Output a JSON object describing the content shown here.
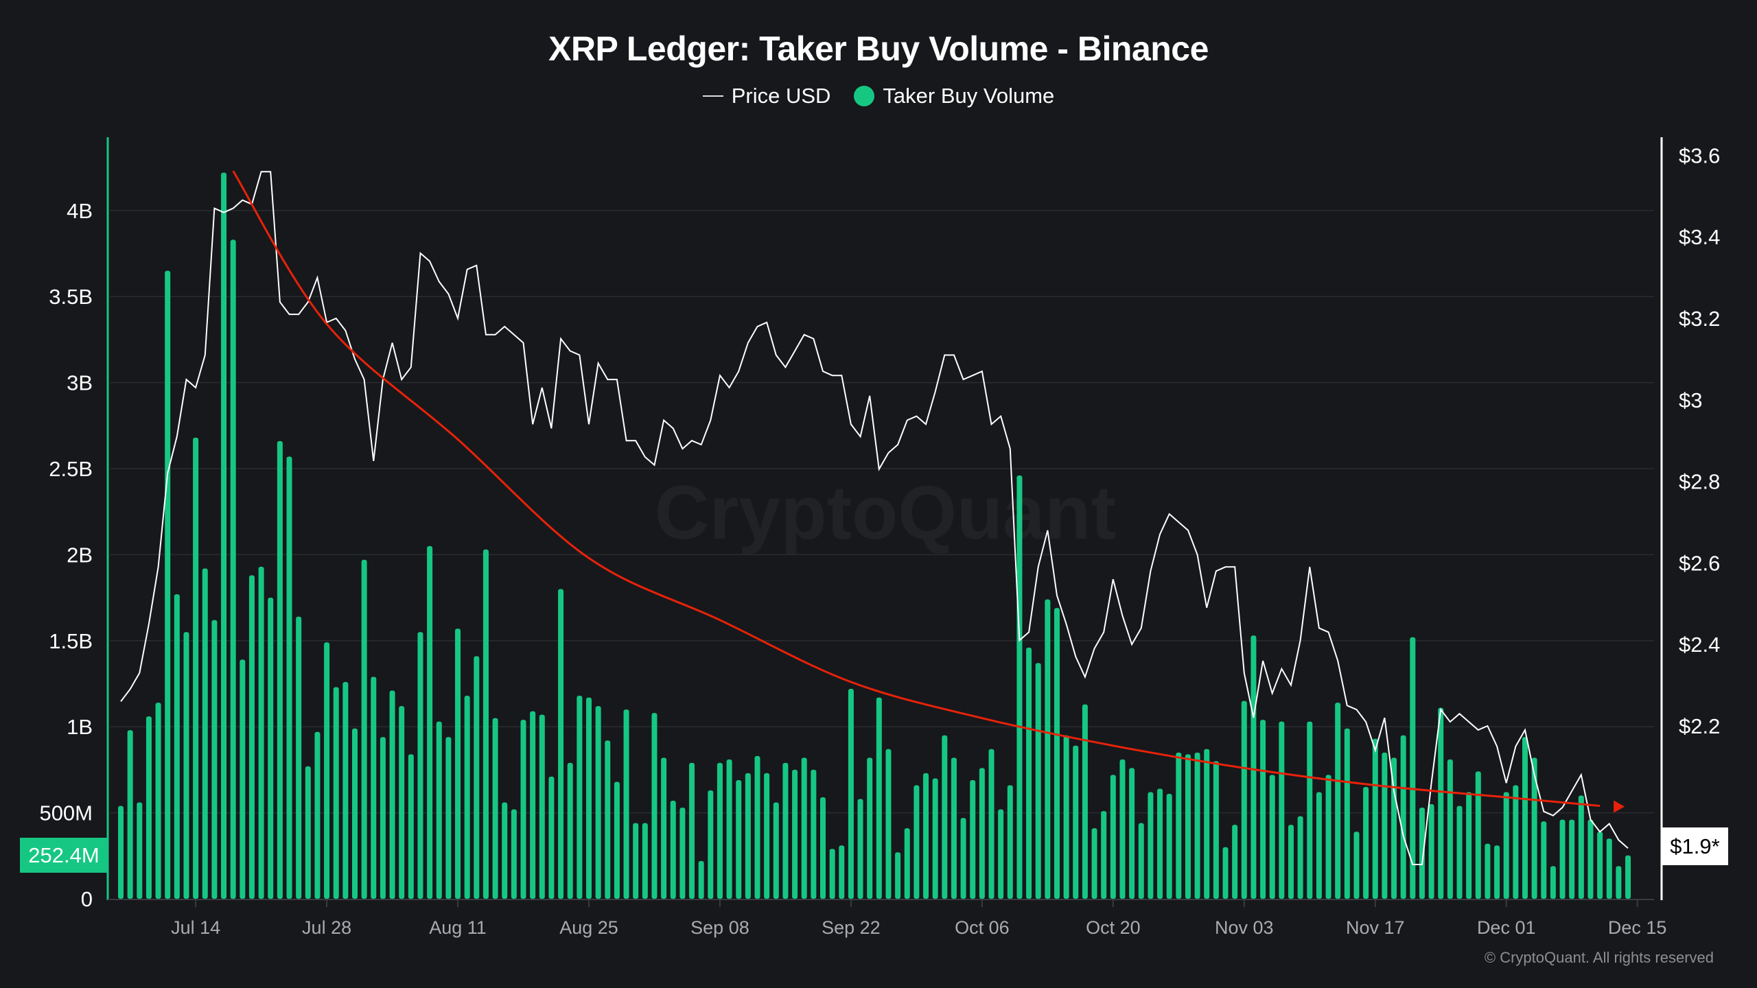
{
  "title": "XRP Ledger: Taker Buy Volume - Binance",
  "legend": {
    "price": "Price USD",
    "volume": "Taker Buy Volume"
  },
  "watermark": "CryptoQuant",
  "copyright": "© CryptoQuant. All rights reserved",
  "colors": {
    "background": "#17181b",
    "volume": "#16c784",
    "price": "#ffffff",
    "trend": "#e8220a",
    "grid": "#2a2b30"
  },
  "highlight": {
    "volume_label": "252.4M",
    "price_label": "$1.9*"
  },
  "chart_data": {
    "type": "bar+line",
    "title": "XRP Ledger: Taker Buy Volume - Binance",
    "x": {
      "start": "Jul 06",
      "end": "Dec 14",
      "interval": "1 day"
    },
    "x_ticks": [
      "Jul 14",
      "Jul 28",
      "Aug 11",
      "Aug 25",
      "Sep 08",
      "Sep 22",
      "Oct 06",
      "Oct 20",
      "Nov 03",
      "Nov 17",
      "Dec 01",
      "Dec 15"
    ],
    "left_axis": {
      "ylim": [
        0,
        4.4
      ],
      "unit": "B",
      "ticks": [
        "0",
        "500M",
        "1B",
        "1.5B",
        "2B",
        "2.5B",
        "3B",
        "3.5B",
        "4B"
      ],
      "tick_values": [
        0,
        0.5,
        1,
        1.5,
        2,
        2.5,
        3,
        3.5,
        4
      ]
    },
    "right_axis": {
      "ylim": [
        1.776,
        3.64
      ],
      "ticks": [
        "$3.6",
        "$3.4",
        "$3.2",
        "$3",
        "$2.8",
        "$2.6",
        "$2.4",
        "$2.2"
      ],
      "tick_values": [
        3.6,
        3.4,
        3.2,
        3.0,
        2.8,
        2.6,
        2.4,
        2.2
      ]
    },
    "grid": true,
    "legend_position": "top-center",
    "series": [
      {
        "name": "Taker Buy Volume",
        "type": "bar",
        "axis": "left",
        "unit": "billions",
        "values": [
          0.54,
          0.98,
          0.56,
          1.06,
          1.14,
          3.65,
          1.77,
          1.55,
          2.68,
          1.92,
          1.62,
          4.22,
          3.83,
          1.39,
          1.88,
          1.93,
          1.75,
          2.66,
          2.57,
          1.64,
          0.77,
          0.97,
          1.49,
          1.23,
          1.26,
          0.99,
          1.97,
          1.29,
          0.94,
          1.21,
          1.12,
          0.84,
          1.55,
          2.05,
          1.03,
          0.94,
          1.57,
          1.18,
          1.41,
          2.03,
          1.05,
          0.56,
          0.52,
          1.04,
          1.09,
          1.07,
          0.71,
          1.8,
          0.79,
          1.18,
          1.17,
          1.12,
          0.92,
          0.68,
          1.1,
          0.44,
          0.44,
          1.08,
          0.82,
          0.57,
          0.53,
          0.79,
          0.22,
          0.63,
          0.79,
          0.81,
          0.69,
          0.73,
          0.83,
          0.73,
          0.56,
          0.79,
          0.75,
          0.82,
          0.75,
          0.59,
          0.29,
          0.31,
          1.22,
          0.58,
          0.82,
          1.17,
          0.87,
          0.27,
          0.41,
          0.66,
          0.73,
          0.7,
          0.95,
          0.82,
          0.47,
          0.69,
          0.76,
          0.87,
          0.52,
          0.66,
          2.46,
          1.46,
          1.37,
          1.74,
          1.69,
          0.95,
          0.89,
          1.13,
          0.41,
          0.51,
          0.72,
          0.81,
          0.76,
          0.44,
          0.62,
          0.64,
          0.61,
          0.85,
          0.84,
          0.85,
          0.87,
          0.8,
          0.3,
          0.43,
          1.15,
          1.53,
          1.04,
          0.72,
          1.03,
          0.43,
          0.48,
          1.03,
          0.62,
          0.72,
          1.14,
          0.99,
          0.39,
          0.65,
          0.93,
          0.85,
          0.82,
          0.95,
          1.52,
          0.53,
          0.55,
          1.11,
          0.81,
          0.54,
          0.62,
          0.74,
          0.32,
          0.31,
          0.62,
          0.66,
          0.94,
          0.82,
          0.45,
          0.19,
          0.46,
          0.46,
          0.6,
          0.46,
          0.39,
          0.35,
          0.19,
          0.2524
        ]
      },
      {
        "name": "Price USD",
        "type": "line",
        "axis": "right",
        "unit": "USD",
        "values": [
          2.26,
          2.29,
          2.33,
          2.45,
          2.59,
          2.82,
          2.91,
          3.05,
          3.03,
          3.11,
          3.47,
          3.46,
          3.47,
          3.49,
          3.48,
          3.56,
          3.56,
          3.24,
          3.21,
          3.21,
          3.24,
          3.3,
          3.19,
          3.2,
          3.17,
          3.1,
          3.05,
          2.85,
          3.05,
          3.14,
          3.05,
          3.08,
          3.36,
          3.34,
          3.29,
          3.26,
          3.2,
          3.32,
          3.33,
          3.16,
          3.16,
          3.18,
          3.16,
          3.14,
          2.94,
          3.03,
          2.93,
          3.15,
          3.12,
          3.11,
          2.94,
          3.09,
          3.05,
          3.05,
          2.9,
          2.9,
          2.86,
          2.84,
          2.95,
          2.93,
          2.88,
          2.9,
          2.89,
          2.95,
          3.06,
          3.03,
          3.07,
          3.14,
          3.18,
          3.19,
          3.11,
          3.08,
          3.12,
          3.16,
          3.15,
          3.07,
          3.06,
          3.06,
          2.94,
          2.91,
          3.01,
          2.83,
          2.87,
          2.89,
          2.95,
          2.96,
          2.94,
          3.02,
          3.11,
          3.11,
          3.05,
          3.06,
          3.07,
          2.94,
          2.96,
          2.88,
          2.41,
          2.43,
          2.59,
          2.68,
          2.52,
          2.45,
          2.37,
          2.32,
          2.39,
          2.43,
          2.56,
          2.47,
          2.4,
          2.44,
          2.58,
          2.67,
          2.72,
          2.7,
          2.68,
          2.62,
          2.49,
          2.58,
          2.59,
          2.59,
          2.33,
          2.22,
          2.36,
          2.28,
          2.34,
          2.3,
          2.41,
          2.59,
          2.44,
          2.43,
          2.36,
          2.25,
          2.24,
          2.21,
          2.14,
          2.22,
          2.04,
          1.93,
          1.86,
          1.86,
          2.06,
          2.24,
          2.21,
          2.23,
          2.21,
          2.19,
          2.2,
          2.15,
          2.06,
          2.15,
          2.19,
          2.08,
          1.99,
          1.98,
          2.0,
          2.04,
          2.08,
          1.97,
          1.94,
          1.96,
          1.92,
          1.9
        ]
      }
    ],
    "annotations": [
      {
        "type": "trend-arrow",
        "axis": "left",
        "color": "#e8220a",
        "points": [
          [
            "Jul 18",
            4.23
          ],
          [
            "Jul 28",
            3.34
          ],
          [
            "Aug 11",
            2.67
          ],
          [
            "Aug 25",
            1.98
          ],
          [
            "Sep 08",
            1.62
          ],
          [
            "Sep 22",
            1.26
          ],
          [
            "Oct 06",
            1.05
          ],
          [
            "Oct 20",
            0.89
          ],
          [
            "Nov 03",
            0.76
          ],
          [
            "Nov 17",
            0.66
          ],
          [
            "Dec 01",
            0.59
          ],
          [
            "Dec 11",
            0.54
          ]
        ]
      }
    ]
  }
}
